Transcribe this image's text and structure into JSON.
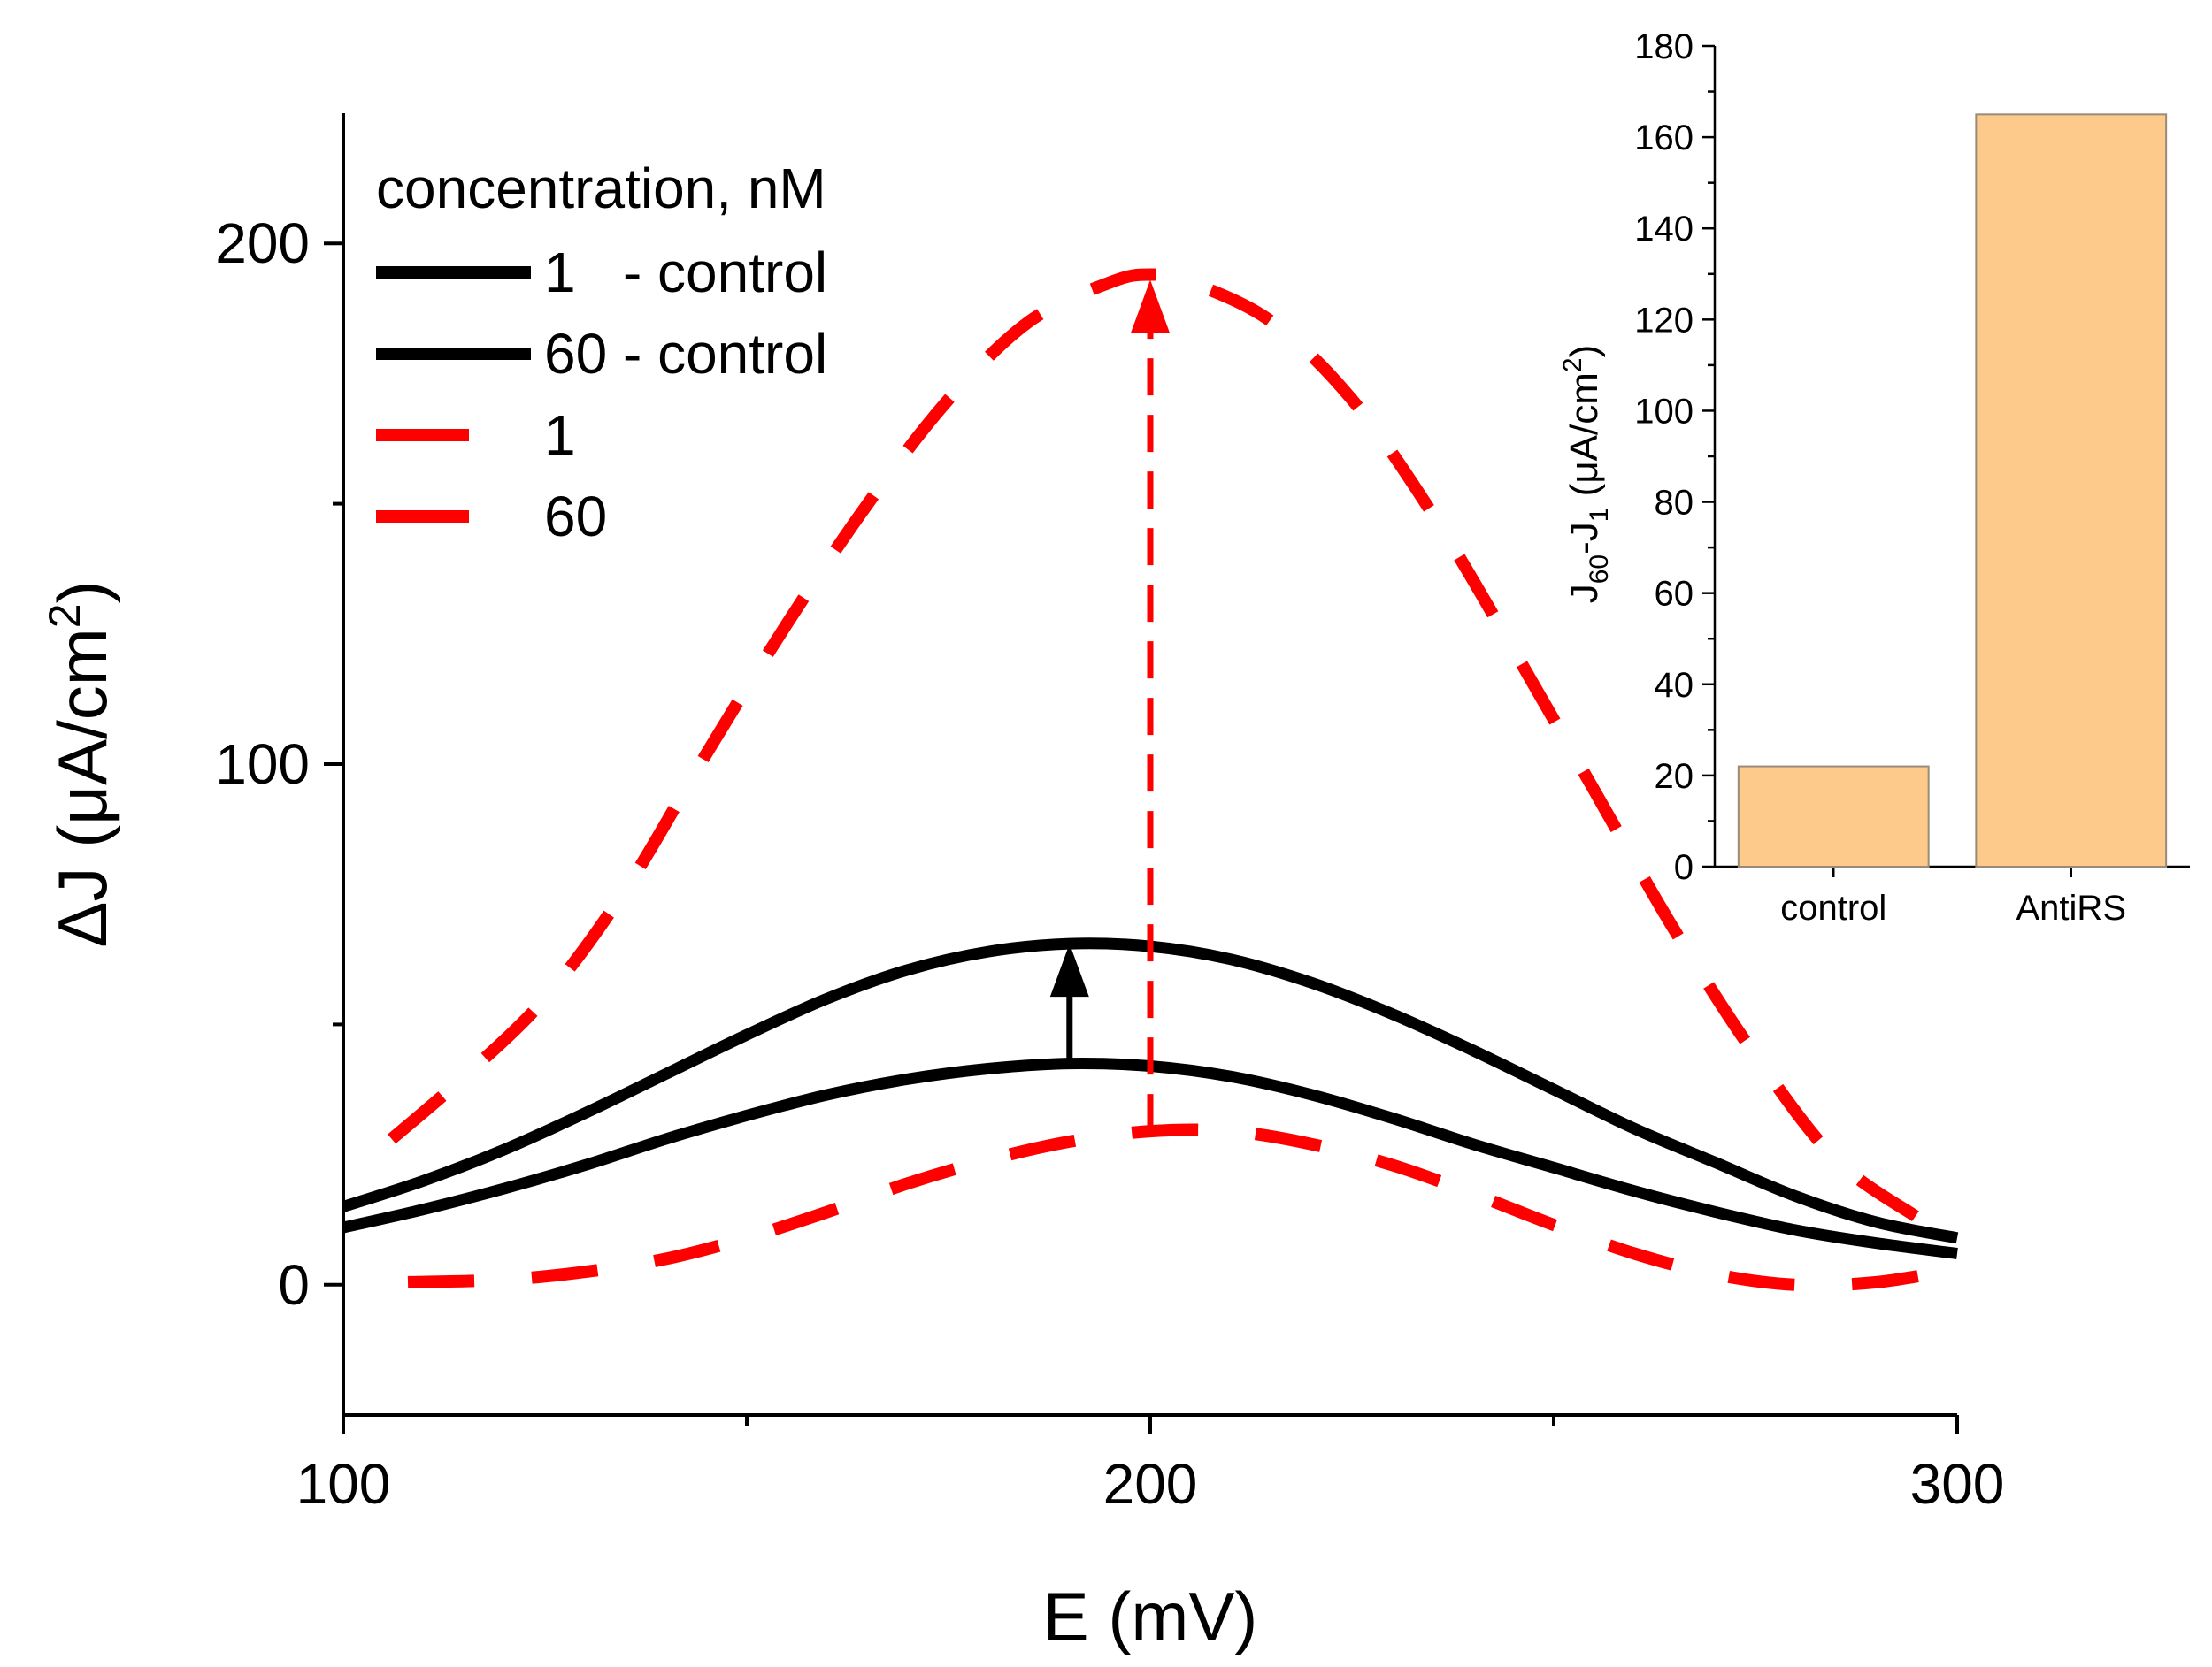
{
  "chart_data": [
    {
      "type": "line",
      "xlabel": "E (mV)",
      "ylabel": "ΔJ (μA/cm²)",
      "ylabel_parts": {
        "base": "ΔJ (μA/cm",
        "sup": "2",
        "end": ")"
      },
      "xlim": [
        100,
        300
      ],
      "ylim": [
        -25,
        225
      ],
      "x_ticks": [
        100,
        200,
        300
      ],
      "x_tick_labels": [
        "100",
        "200",
        "300"
      ],
      "x_minor_ticks": [
        150,
        250
      ],
      "y_ticks": [
        0,
        100,
        200
      ],
      "y_tick_labels": [
        "0",
        "100",
        "200"
      ],
      "y_minor_ticks": [
        50,
        150
      ],
      "legend_title": "concentration, nM",
      "series": [
        {
          "name": "1   - control",
          "color": "#000000",
          "dash": "solid",
          "x": [
            100,
            110,
            120,
            130,
            140,
            150,
            160,
            170,
            180,
            190,
            200,
            210,
            220,
            230,
            240,
            250,
            260,
            270,
            280,
            290,
            300
          ],
          "y": [
            11,
            14.5,
            18.5,
            23,
            28,
            32.5,
            36.5,
            39.5,
            41.5,
            42.5,
            42,
            40,
            36.5,
            32,
            27,
            22.5,
            18,
            14,
            10.5,
            8,
            6
          ]
        },
        {
          "name": "60 - control",
          "color": "#000000",
          "dash": "solid",
          "x": [
            100,
            110,
            120,
            130,
            140,
            150,
            160,
            170,
            180,
            190,
            200,
            210,
            220,
            230,
            240,
            250,
            260,
            270,
            280,
            290,
            300
          ],
          "y": [
            15,
            20,
            26,
            33,
            40.5,
            48,
            55,
            60.5,
            64,
            65.5,
            65,
            62.5,
            58,
            52,
            45,
            37.5,
            30,
            23.5,
            17,
            12,
            9
          ]
        },
        {
          "name": "1",
          "color": "#ff0000",
          "dash": "dashed",
          "x": [
            108,
            120,
            130,
            140,
            150,
            160,
            170,
            180,
            190,
            200,
            210,
            220,
            230,
            240,
            250,
            260,
            270,
            280,
            290,
            300
          ],
          "y": [
            0.5,
            1,
            2.5,
            5,
            9,
            14,
            19.5,
            24,
            27.5,
            29.5,
            29.5,
            27,
            23,
            17.5,
            11.5,
            6,
            2,
            0,
            0.5,
            3
          ]
        },
        {
          "name": "60",
          "color": "#ff0000",
          "dash": "dashed",
          "x": [
            106,
            115,
            125,
            135,
            145,
            155,
            165,
            175,
            185,
            195,
            200,
            205,
            215,
            225,
            235,
            245,
            255,
            265,
            275,
            285,
            295
          ],
          "y": [
            28,
            40,
            55,
            76,
            102,
            127,
            150,
            170,
            185,
            192.5,
            194,
            192.5,
            185,
            170,
            148,
            122,
            95,
            68,
            44,
            24,
            13
          ]
        }
      ],
      "arrows": [
        {
          "color": "#000000",
          "dash": "solid",
          "x": 190,
          "y_from": 42.5,
          "y_to": 65.5
        },
        {
          "color": "#ff0000",
          "dash": "dashed",
          "x": 200,
          "y_from": 29.5,
          "y_to": 193
        }
      ]
    },
    {
      "type": "bar",
      "categories": [
        "control",
        "AntiRS"
      ],
      "values": [
        22,
        165
      ],
      "bar_color": "#fdca8c",
      "bar_edge": "#9a8a78",
      "ylabel": "J60-J1 (μA/cm²)",
      "ylabel_parts": {
        "j": "J",
        "sub1": "60",
        "dash": "-J",
        "sub2": "1",
        "open": " (μA/cm",
        "sup": "2",
        "close": ")"
      },
      "ylim": [
        0,
        180
      ],
      "y_ticks": [
        0,
        20,
        40,
        60,
        80,
        100,
        120,
        140,
        160,
        180
      ],
      "y_tick_labels": [
        "0",
        "20",
        "40",
        "60",
        "80",
        "100",
        "120",
        "140",
        "160",
        "180"
      ]
    }
  ]
}
